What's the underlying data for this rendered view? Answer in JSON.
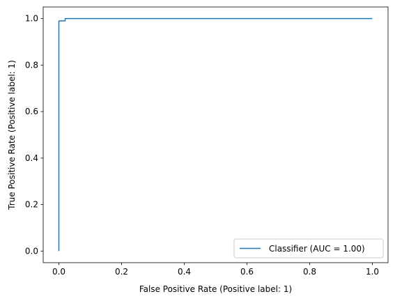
{
  "chart_data": {
    "type": "line",
    "xlabel": "False Positive Rate (Positive label: 1)",
    "ylabel": "True Positive Rate (Positive label: 1)",
    "xlim": [
      -0.05,
      1.05
    ],
    "ylim": [
      -0.05,
      1.05
    ],
    "xticks": [
      0.0,
      0.2,
      0.4,
      0.6,
      0.8,
      1.0
    ],
    "yticks": [
      0.0,
      0.2,
      0.4,
      0.6,
      0.8,
      1.0
    ],
    "xtick_labels": [
      "0.0",
      "0.2",
      "0.4",
      "0.6",
      "0.8",
      "1.0"
    ],
    "ytick_labels": [
      "0.0",
      "0.2",
      "0.4",
      "0.6",
      "0.8",
      "1.0"
    ],
    "grid": false,
    "legend_position": "lower-right",
    "series": [
      {
        "name": "Classifier (AUC = 1.00)",
        "color": "#1f77b4",
        "step": true,
        "x": [
          0.0,
          0.0,
          0.0,
          0.0,
          0.02,
          0.02,
          1.0
        ],
        "y": [
          0.0,
          0.99,
          0.99,
          0.99,
          0.99,
          1.0,
          1.0
        ]
      }
    ]
  }
}
